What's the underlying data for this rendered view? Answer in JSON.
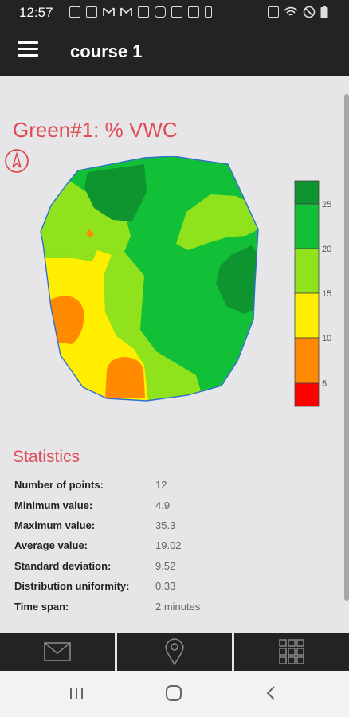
{
  "status_bar": {
    "time": "12:57",
    "left_icons": [
      "message-icon",
      "shopping-bag-icon",
      "gmail-icon",
      "gmail-icon",
      "image-icon",
      "youtube-icon",
      "close-box-icon",
      "news-icon",
      "battery-saver-icon"
    ],
    "right_icons": [
      "nfc-icon",
      "wifi-icon",
      "do-not-disturb-icon",
      "battery-icon"
    ]
  },
  "app_bar": {
    "title": "course 1"
  },
  "map": {
    "title": "Green#1: % VWC",
    "colors": {
      "dark_green": "#0f9530",
      "green": "#12c038",
      "light_green": "#8fe21c",
      "yellow": "#ffee00",
      "orange": "#ff8a00",
      "red": "#ff0000",
      "outline": "#2f6fd0"
    }
  },
  "legend": {
    "ticks": [
      "25",
      "20",
      "15",
      "10",
      "5"
    ]
  },
  "statistics": {
    "title": "Statistics",
    "rows": [
      {
        "label": "Number of points:",
        "value": "12"
      },
      {
        "label": "Minimum value:",
        "value": "4.9"
      },
      {
        "label": "Maximum value:",
        "value": "35.3"
      },
      {
        "label": "Average value:",
        "value": "19.02"
      },
      {
        "label": "Standard deviation:",
        "value": "9.52"
      },
      {
        "label": "Distribution uniformity:",
        "value": "0.33"
      },
      {
        "label": "Time span:",
        "value": "2 minutes"
      }
    ]
  },
  "bottom_nav": {
    "tabs": [
      "mail-icon",
      "location-pin-icon",
      "grid-icon"
    ]
  },
  "system_nav": {
    "buttons": [
      "recent-apps-icon",
      "home-icon",
      "back-icon"
    ]
  }
}
